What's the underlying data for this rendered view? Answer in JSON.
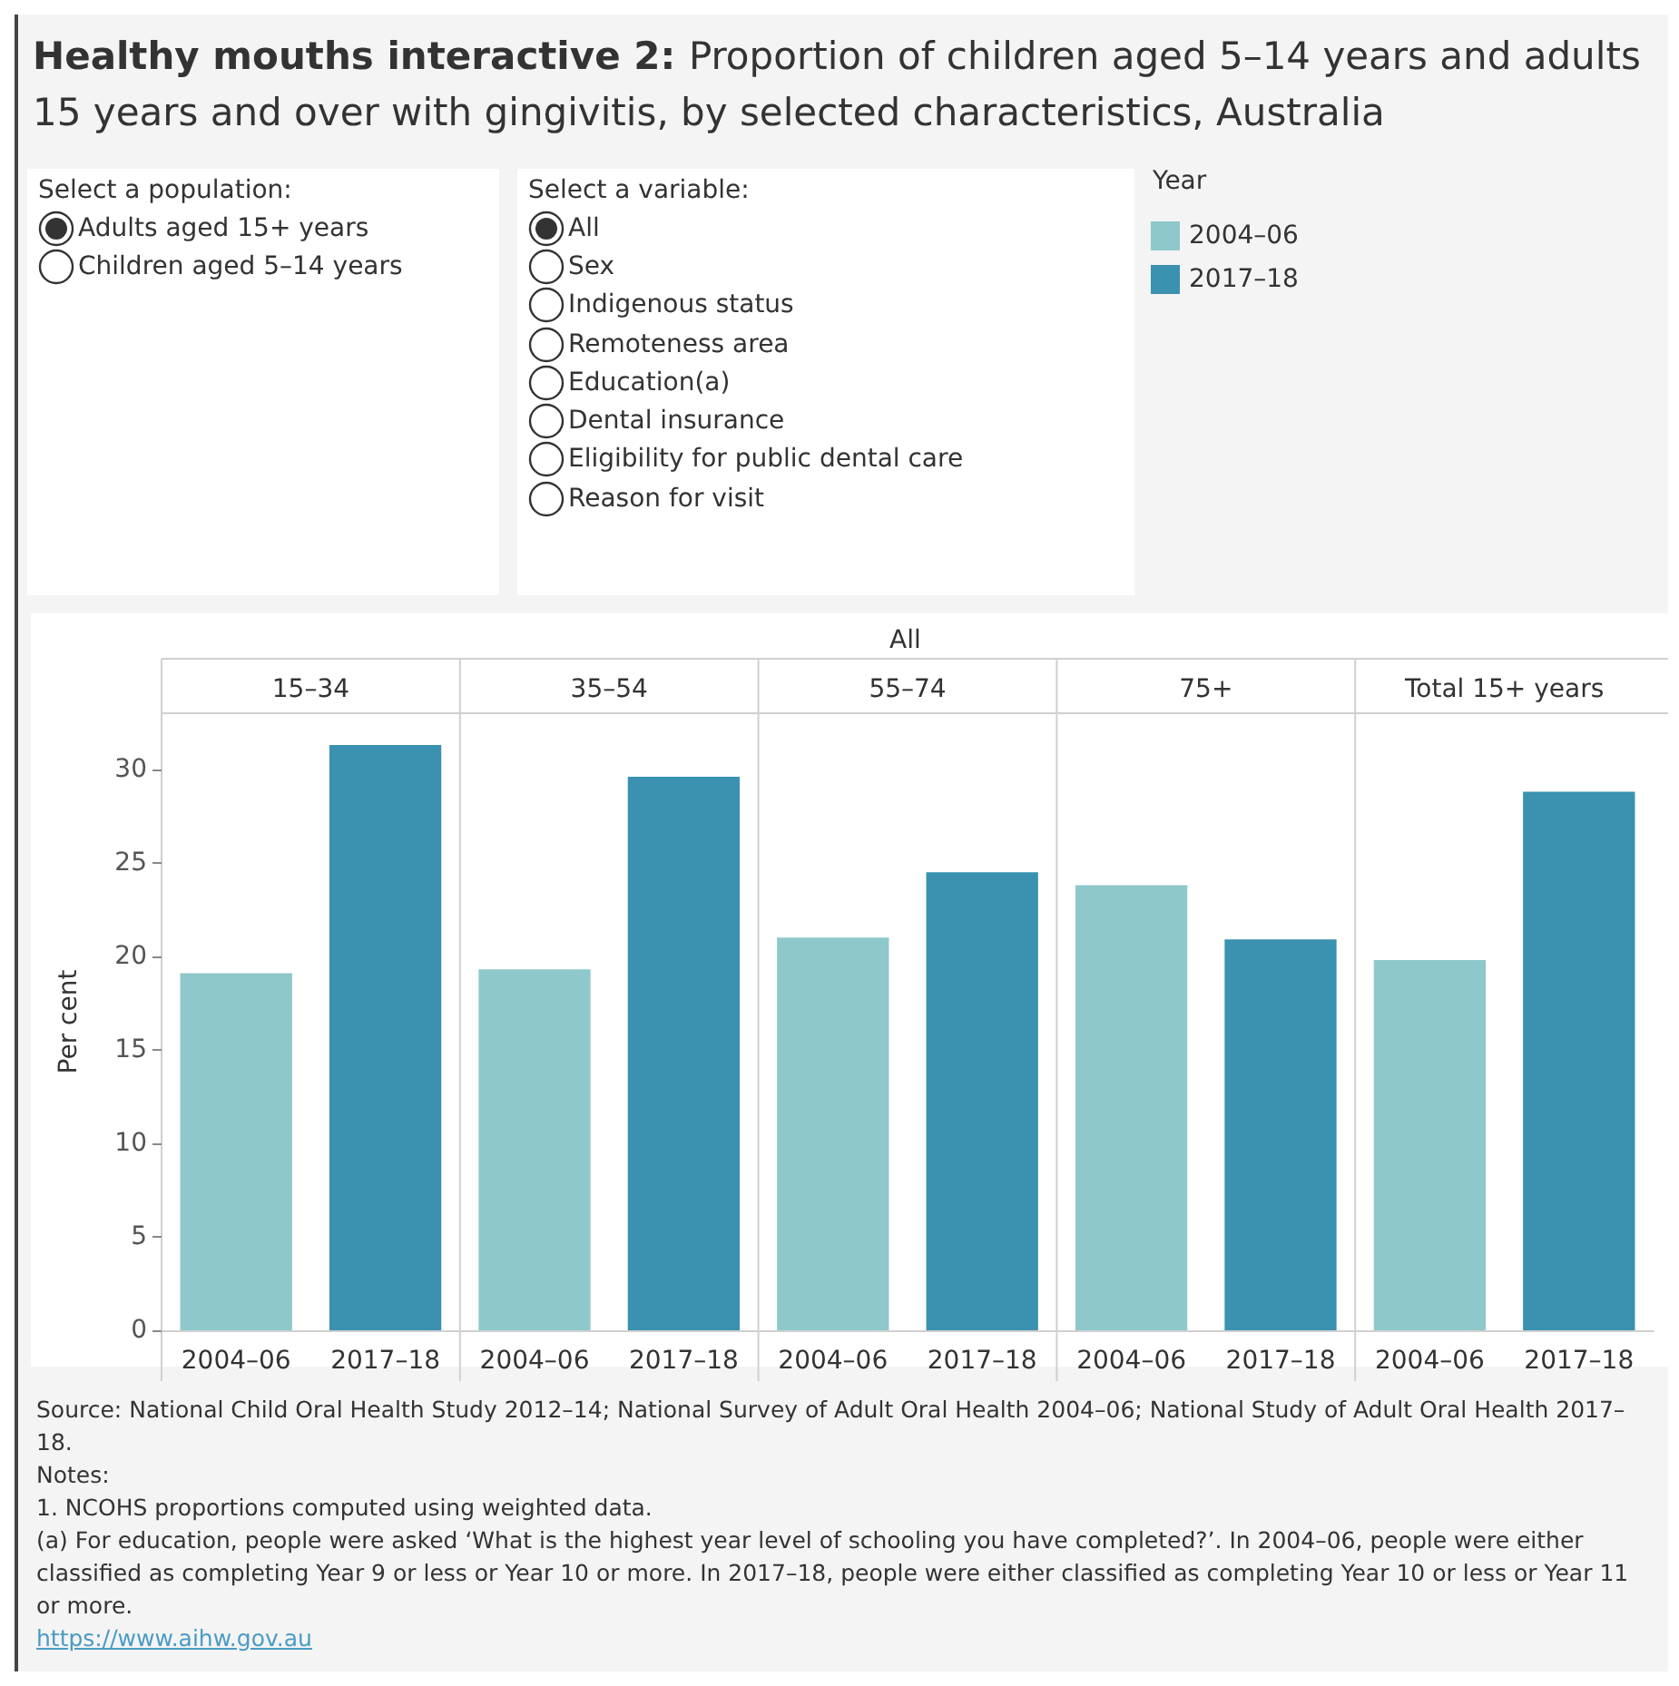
{
  "chart_data": [
    {
      "type": "other",
      "title": "Select a population:",
      "annotations": [
        "Adults aged 15+ years",
        "Children aged 5–14 years"
      ]
    },
    {
      "type": "other",
      "title": "Select a variable:",
      "annotations": [
        "All",
        "Sex",
        "Indigenous status",
        "Remoteness area",
        "Education(a)",
        "Dental insurance",
        "Eligibility for public dental care",
        "Reason for visit"
      ]
    },
    {
      "type": "bar",
      "title": "Healthy mouths interactive 2:",
      "subtitle": "Proportion of children aged 5–14 years and adults 15 years and over with gingivitis, by selected characteristics, Australia",
      "ylabel": "Per cent",
      "legend_title": "Year",
      "legend": "top right",
      "grid": false,
      "categories": [
        "2004–06",
        "2017–18",
        "2004–06",
        "2017–18",
        "2004–06",
        "2017–18",
        "2004–06",
        "2017–18",
        "2004–06",
        "2017–18"
      ],
      "series": [
        {
          "name": "2004–06",
          "color": "#8ec8cb",
          "values": [
            19.1,
            null,
            19.3,
            null,
            21.0,
            null,
            23.8,
            null,
            19.8,
            null
          ]
        },
        {
          "name": "2017–18",
          "color": "#3a91b0",
          "values": [
            null,
            31.3,
            null,
            29.6,
            null,
            24.5,
            null,
            20.9,
            null,
            28.8
          ]
        }
      ],
      "ylim": [
        0,
        33
      ],
      "yticks": [
        0,
        5,
        10,
        15,
        20,
        25,
        30
      ],
      "annotations": [
        "All",
        "15–34",
        "35–54",
        "55–74",
        "75+",
        "Total 15+ years",
        "Source: National Child Oral Health Study 2012–14; National Survey of Adult Oral Health 2004–06; National Study of Adult Oral Health 2017–18.",
        "Notes:",
        "1. NCOHS proportions computed using weighted data.",
        "(a) For education, people were asked ‘What is the highest year level of schooling you have completed?’. In 2004–06, people were either classified as completing Year 9 or less or Year 10 or more. In 2017–18, people were either classified as completing Year 10 or less or Year 11 or more.",
        "https://www.aihw.gov.au"
      ]
    }
  ]
}
